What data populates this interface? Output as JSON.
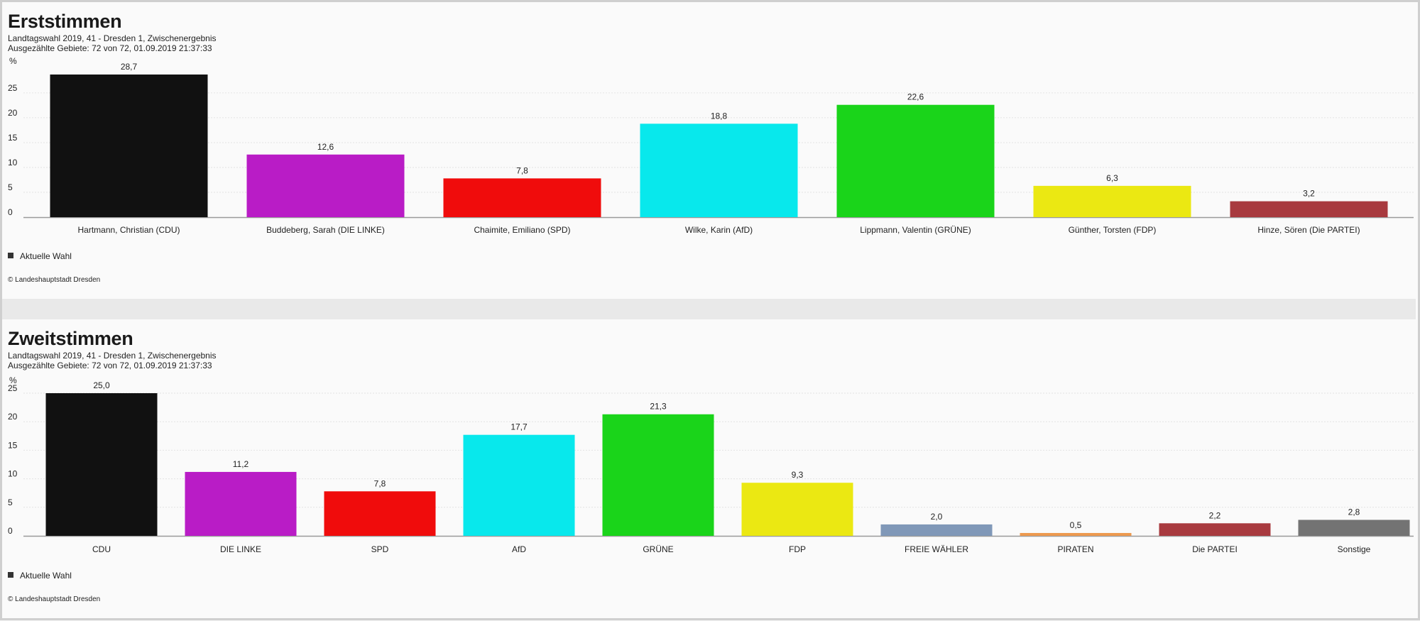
{
  "chart_data": [
    {
      "type": "bar",
      "title": "Erststimmen",
      "subtitle_lines": [
        "Landtagswahl 2019, 41 - Dresden 1, Zwischenergebnis",
        "Ausgezählte Gebiete: 72 von 72, 01.09.2019 21:37:33"
      ],
      "ylabel": "%",
      "ylim": [
        0,
        28.7
      ],
      "yticks": [
        0,
        5,
        10,
        15,
        20,
        25
      ],
      "grid": true,
      "legend": {
        "label": "Aktuelle Wahl",
        "position": "bottom-left"
      },
      "credit": "© Landeshauptstadt Dresden",
      "categories": [
        "Hartmann, Christian (CDU)",
        "Buddeberg, Sarah (DIE LINKE)",
        "Chaimite, Emiliano (SPD)",
        "Wilke, Karin (AfD)",
        "Lippmann, Valentin (GRÜNE)",
        "Günther, Torsten (FDP)",
        "Hinze, Sören (Die PARTEI)"
      ],
      "values": [
        28.7,
        12.6,
        7.8,
        18.8,
        22.6,
        6.3,
        3.2
      ],
      "value_labels": [
        "28,7",
        "12,6",
        "7,8",
        "18,8",
        "22,6",
        "6,3",
        "3,2"
      ],
      "colors": [
        "#111111",
        "#b91cc6",
        "#f00c0c",
        "#08e8ec",
        "#1ad41a",
        "#ebe812",
        "#a83a3f"
      ]
    },
    {
      "type": "bar",
      "title": "Zweitstimmen",
      "subtitle_lines": [
        "Landtagswahl 2019, 41 - Dresden 1, Zwischenergebnis",
        "Ausgezählte Gebiete: 72 von 72, 01.09.2019 21:37:33"
      ],
      "ylabel": "%",
      "ylim": [
        0,
        25
      ],
      "yticks": [
        0,
        5,
        10,
        15,
        20,
        25
      ],
      "grid": true,
      "legend": {
        "label": "Aktuelle Wahl",
        "position": "bottom-left"
      },
      "credit": "© Landeshauptstadt Dresden",
      "categories": [
        "CDU",
        "DIE LINKE",
        "SPD",
        "AfD",
        "GRÜNE",
        "FDP",
        "FREIE WÄHLER",
        "PIRATEN",
        "Die PARTEI",
        "Sonstige"
      ],
      "values": [
        25.0,
        11.2,
        7.8,
        17.7,
        21.3,
        9.3,
        2.0,
        0.5,
        2.2,
        2.8
      ],
      "value_labels": [
        "25,0",
        "11,2",
        "7,8",
        "17,7",
        "21,3",
        "9,3",
        "2,0",
        "0,5",
        "2,2",
        "2,8"
      ],
      "colors": [
        "#111111",
        "#b91cc6",
        "#f00c0c",
        "#08e8ec",
        "#1ad41a",
        "#ebe812",
        "#8098b8",
        "#ed9a4f",
        "#a83a3f",
        "#737373"
      ]
    }
  ]
}
